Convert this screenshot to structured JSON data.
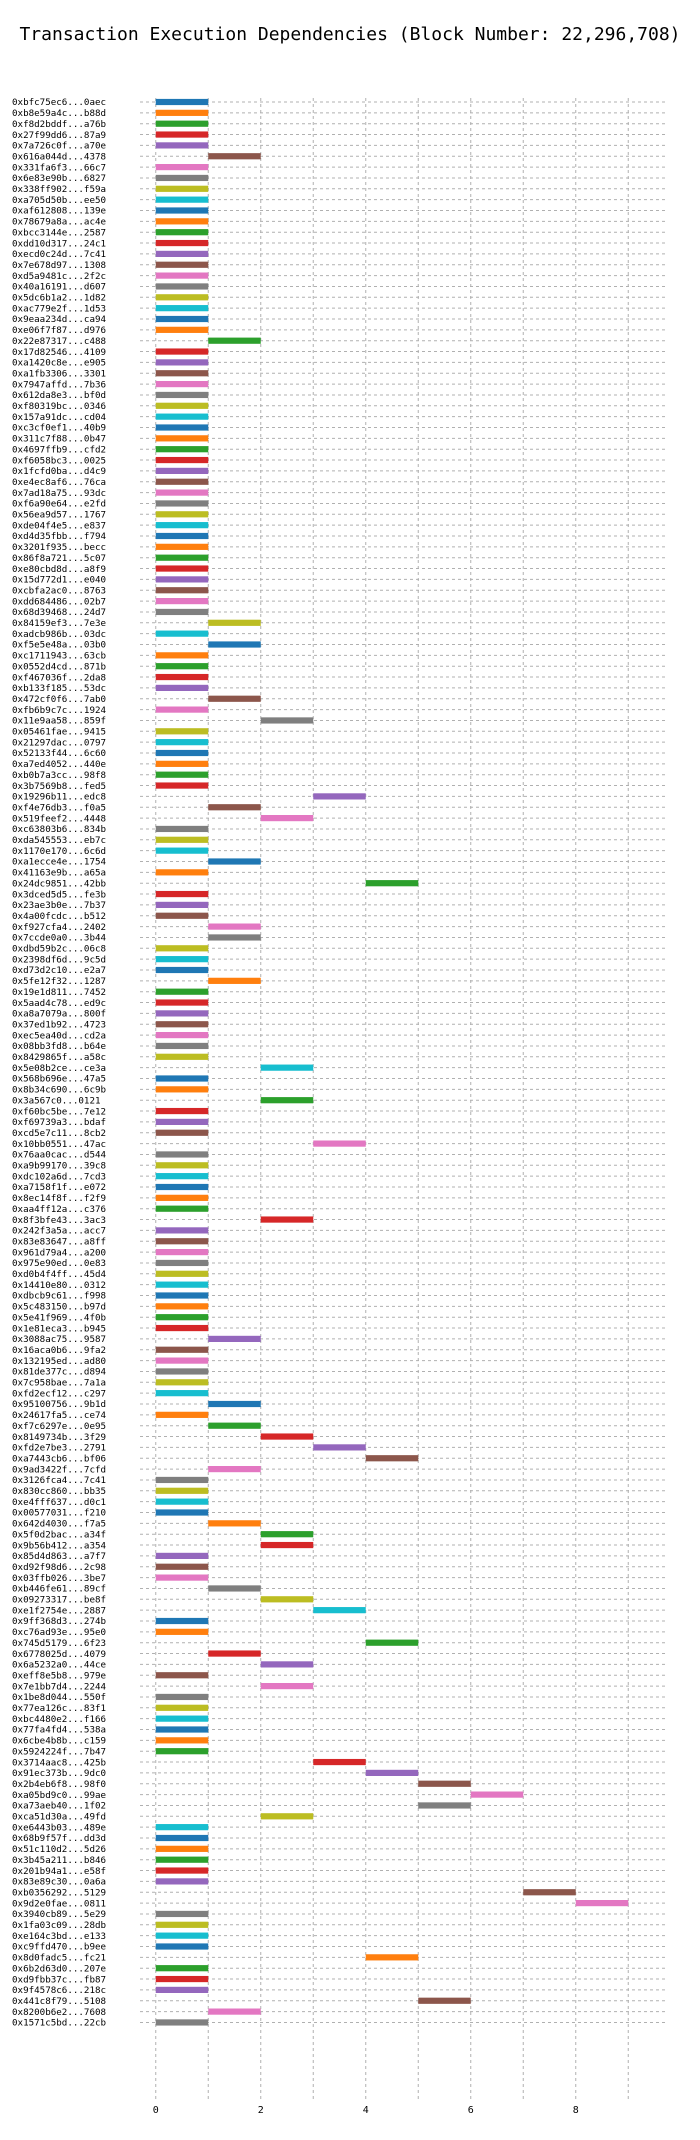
{
  "chart_data": {
    "type": "bar",
    "orientation": "horizontal",
    "title": "Transaction Execution Dependencies (Block Number: 22,296,708)",
    "xlabel": "",
    "ylabel": "",
    "xlim": [
      -0.3,
      9.7
    ],
    "xticks": [
      0,
      2,
      4,
      6,
      8
    ],
    "grid": true,
    "palette": [
      "#1f77b4",
      "#ff7f0e",
      "#2ca02c",
      "#d62728",
      "#9467bd",
      "#8c564b",
      "#e377c2",
      "#7f7f7f",
      "#bcbd22",
      "#17becf"
    ],
    "transactions": [
      {
        "label": "0xbfc75ec6...0aec",
        "start": 0,
        "end": 1
      },
      {
        "label": "0xb8e59a4c...b88d",
        "start": 0,
        "end": 1
      },
      {
        "label": "0xf8d2bddf...a76b",
        "start": 0,
        "end": 1
      },
      {
        "label": "0x27f99dd6...87a9",
        "start": 0,
        "end": 1
      },
      {
        "label": "0x7a726c0f...a70e",
        "start": 0,
        "end": 1
      },
      {
        "label": "0x616a044d...4378",
        "start": 1,
        "end": 2
      },
      {
        "label": "0x331fa6f3...66c7",
        "start": 0,
        "end": 1
      },
      {
        "label": "0x6e83e90b...6827",
        "start": 0,
        "end": 1
      },
      {
        "label": "0x338ff902...f59a",
        "start": 0,
        "end": 1
      },
      {
        "label": "0xa705d50b...ee50",
        "start": 0,
        "end": 1
      },
      {
        "label": "0xaf612808...139e",
        "start": 0,
        "end": 1
      },
      {
        "label": "0x78679a8a...ac4e",
        "start": 0,
        "end": 1
      },
      {
        "label": "0xbcc3144e...2587",
        "start": 0,
        "end": 1
      },
      {
        "label": "0xdd10d317...24c1",
        "start": 0,
        "end": 1
      },
      {
        "label": "0xecd0c24d...7c41",
        "start": 0,
        "end": 1
      },
      {
        "label": "0x7e678d97...1308",
        "start": 0,
        "end": 1
      },
      {
        "label": "0xd5a9481c...2f2c",
        "start": 0,
        "end": 1
      },
      {
        "label": "0x40a16191...d607",
        "start": 0,
        "end": 1
      },
      {
        "label": "0x5dc6b1a2...1d82",
        "start": 0,
        "end": 1
      },
      {
        "label": "0xac779e2f...1d53",
        "start": 0,
        "end": 1
      },
      {
        "label": "0x9eaa234d...ca94",
        "start": 0,
        "end": 1
      },
      {
        "label": "0xe06f7f87...d976",
        "start": 0,
        "end": 1
      },
      {
        "label": "0x22e87317...c488",
        "start": 1,
        "end": 2
      },
      {
        "label": "0x17d82546...4109",
        "start": 0,
        "end": 1
      },
      {
        "label": "0xa1420c8e...e905",
        "start": 0,
        "end": 1
      },
      {
        "label": "0xa1fb3306...3301",
        "start": 0,
        "end": 1
      },
      {
        "label": "0x7947affd...7b36",
        "start": 0,
        "end": 1
      },
      {
        "label": "0x612da8e3...bf0d",
        "start": 0,
        "end": 1
      },
      {
        "label": "0xf80319bc...0346",
        "start": 0,
        "end": 1
      },
      {
        "label": "0x157a91dc...cd04",
        "start": 0,
        "end": 1
      },
      {
        "label": "0xc3cf0ef1...40b9",
        "start": 0,
        "end": 1
      },
      {
        "label": "0x311c7f88...0b47",
        "start": 0,
        "end": 1
      },
      {
        "label": "0x4697ffb9...cfd2",
        "start": 0,
        "end": 1
      },
      {
        "label": "0xf6058bc3...0025",
        "start": 0,
        "end": 1
      },
      {
        "label": "0x1fcfd0ba...d4c9",
        "start": 0,
        "end": 1
      },
      {
        "label": "0xe4ec8af6...76ca",
        "start": 0,
        "end": 1
      },
      {
        "label": "0x7ad18a75...93dc",
        "start": 0,
        "end": 1
      },
      {
        "label": "0xf6a90e64...e2fd",
        "start": 0,
        "end": 1
      },
      {
        "label": "0x56ea9d57...1767",
        "start": 0,
        "end": 1
      },
      {
        "label": "0xde04f4e5...e837",
        "start": 0,
        "end": 1
      },
      {
        "label": "0xd4d35fbb...f794",
        "start": 0,
        "end": 1
      },
      {
        "label": "0x3201f935...becc",
        "start": 0,
        "end": 1
      },
      {
        "label": "0x86f8a721...5c07",
        "start": 0,
        "end": 1
      },
      {
        "label": "0xe80cbd8d...a8f9",
        "start": 0,
        "end": 1
      },
      {
        "label": "0x15d772d1...e040",
        "start": 0,
        "end": 1
      },
      {
        "label": "0xcbfa2ac0...8763",
        "start": 0,
        "end": 1
      },
      {
        "label": "0xdd684486...02b7",
        "start": 0,
        "end": 1
      },
      {
        "label": "0x68d39468...24d7",
        "start": 0,
        "end": 1
      },
      {
        "label": "0x84159ef3...7e3e",
        "start": 1,
        "end": 2
      },
      {
        "label": "0xadcb986b...03dc",
        "start": 0,
        "end": 1
      },
      {
        "label": "0xf5e5e48a...03b0",
        "start": 1,
        "end": 2
      },
      {
        "label": "0xc1711943...63cb",
        "start": 0,
        "end": 1
      },
      {
        "label": "0x0552d4cd...871b",
        "start": 0,
        "end": 1
      },
      {
        "label": "0xf467036f...2da8",
        "start": 0,
        "end": 1
      },
      {
        "label": "0xb133f185...53dc",
        "start": 0,
        "end": 1
      },
      {
        "label": "0x472cf0f6...7ab0",
        "start": 1,
        "end": 2
      },
      {
        "label": "0xfb6b9c7c...1924",
        "start": 0,
        "end": 1
      },
      {
        "label": "0x11e9aa58...859f",
        "start": 2,
        "end": 3
      },
      {
        "label": "0x05461fae...9415",
        "start": 0,
        "end": 1
      },
      {
        "label": "0x21297dac...0797",
        "start": 0,
        "end": 1
      },
      {
        "label": "0x52133f44...6c60",
        "start": 0,
        "end": 1
      },
      {
        "label": "0xa7ed4052...440e",
        "start": 0,
        "end": 1
      },
      {
        "label": "0xb0b7a3cc...98f8",
        "start": 0,
        "end": 1
      },
      {
        "label": "0x3b7569b8...fed5",
        "start": 0,
        "end": 1
      },
      {
        "label": "0x19296b11...edc8",
        "start": 3,
        "end": 4
      },
      {
        "label": "0xf4e76db3...f0a5",
        "start": 1,
        "end": 2
      },
      {
        "label": "0x519feef2...4448",
        "start": 2,
        "end": 3
      },
      {
        "label": "0xc63803b6...834b",
        "start": 0,
        "end": 1
      },
      {
        "label": "0xda545553...eb7c",
        "start": 0,
        "end": 1
      },
      {
        "label": "0x1170e170...6c6d",
        "start": 0,
        "end": 1
      },
      {
        "label": "0xa1ecce4e...1754",
        "start": 1,
        "end": 2
      },
      {
        "label": "0x41163e9b...a65a",
        "start": 0,
        "end": 1
      },
      {
        "label": "0x24dc9851...42bb",
        "start": 4,
        "end": 5
      },
      {
        "label": "0x3dced5d5...fe3b",
        "start": 0,
        "end": 1
      },
      {
        "label": "0x23ae3b0e...7b37",
        "start": 0,
        "end": 1
      },
      {
        "label": "0x4a00fcdc...b512",
        "start": 0,
        "end": 1
      },
      {
        "label": "0xf927cfa4...2402",
        "start": 1,
        "end": 2
      },
      {
        "label": "0x7ccde0a0...3b44",
        "start": 1,
        "end": 2
      },
      {
        "label": "0xdbd59b2c...06c8",
        "start": 0,
        "end": 1
      },
      {
        "label": "0x2398df6d...9c5d",
        "start": 0,
        "end": 1
      },
      {
        "label": "0xd73d2c10...e2a7",
        "start": 0,
        "end": 1
      },
      {
        "label": "0x5fe12f32...1287",
        "start": 1,
        "end": 2
      },
      {
        "label": "0x19e1d811...7452",
        "start": 0,
        "end": 1
      },
      {
        "label": "0x5aad4c78...ed9c",
        "start": 0,
        "end": 1
      },
      {
        "label": "0xa8a7079a...800f",
        "start": 0,
        "end": 1
      },
      {
        "label": "0x37ed1b92...4723",
        "start": 0,
        "end": 1
      },
      {
        "label": "0xec5ea40d...cd2a",
        "start": 0,
        "end": 1
      },
      {
        "label": "0x08bb3fd8...b64e",
        "start": 0,
        "end": 1
      },
      {
        "label": "0x8429865f...a58c",
        "start": 0,
        "end": 1
      },
      {
        "label": "0x5e08b2ce...ce3a",
        "start": 2,
        "end": 3
      },
      {
        "label": "0x568b696e...47a5",
        "start": 0,
        "end": 1
      },
      {
        "label": "0x8b34c690...6c9b",
        "start": 0,
        "end": 1
      },
      {
        "label": "0x3a567c0...0121",
        "start": 2,
        "end": 3
      },
      {
        "label": "0xf60bc5be...7e12",
        "start": 0,
        "end": 1
      },
      {
        "label": "0xf69739a3...bdaf",
        "start": 0,
        "end": 1
      },
      {
        "label": "0xcd5e7c11...8cb2",
        "start": 0,
        "end": 1
      },
      {
        "label": "0x10bb0551...47ac",
        "start": 3,
        "end": 4
      },
      {
        "label": "0x76aa0cac...d544",
        "start": 0,
        "end": 1
      },
      {
        "label": "0xa9b99170...39c8",
        "start": 0,
        "end": 1
      },
      {
        "label": "0xdc102a6d...7cd3",
        "start": 0,
        "end": 1
      },
      {
        "label": "0xa7158f1f...e072",
        "start": 0,
        "end": 1
      },
      {
        "label": "0x8ec14f8f...f2f9",
        "start": 0,
        "end": 1
      },
      {
        "label": "0xaa4ff12a...c376",
        "start": 0,
        "end": 1
      },
      {
        "label": "0x8f3bfe43...3ac3",
        "start": 2,
        "end": 3
      },
      {
        "label": "0x242f3a5a...acc7",
        "start": 0,
        "end": 1
      },
      {
        "label": "0x83e83647...a8ff",
        "start": 0,
        "end": 1
      },
      {
        "label": "0x961d79a4...a200",
        "start": 0,
        "end": 1
      },
      {
        "label": "0x975e90ed...0e83",
        "start": 0,
        "end": 1
      },
      {
        "label": "0xd0b4f4ff...45d4",
        "start": 0,
        "end": 1
      },
      {
        "label": "0x14410e80...0312",
        "start": 0,
        "end": 1
      },
      {
        "label": "0xdbcb9c61...f998",
        "start": 0,
        "end": 1
      },
      {
        "label": "0x5c483150...b97d",
        "start": 0,
        "end": 1
      },
      {
        "label": "0x5e41f969...4f0b",
        "start": 0,
        "end": 1
      },
      {
        "label": "0x1e81eca3...b945",
        "start": 0,
        "end": 1
      },
      {
        "label": "0x3088ac75...9587",
        "start": 1,
        "end": 2
      },
      {
        "label": "0x16aca0b6...9fa2",
        "start": 0,
        "end": 1
      },
      {
        "label": "0x132195ed...ad80",
        "start": 0,
        "end": 1
      },
      {
        "label": "0x81de377c...d894",
        "start": 0,
        "end": 1
      },
      {
        "label": "0x7c958bae...7a1a",
        "start": 0,
        "end": 1
      },
      {
        "label": "0xfd2ecf12...c297",
        "start": 0,
        "end": 1
      },
      {
        "label": "0x95100756...9b1d",
        "start": 1,
        "end": 2
      },
      {
        "label": "0x24617fa5...ce74",
        "start": 0,
        "end": 1
      },
      {
        "label": "0xf7c6297e...0e95",
        "start": 1,
        "end": 2
      },
      {
        "label": "0x8149734b...3f29",
        "start": 2,
        "end": 3
      },
      {
        "label": "0xfd2e7be3...2791",
        "start": 3,
        "end": 4
      },
      {
        "label": "0xa7443cb6...bf06",
        "start": 4,
        "end": 5
      },
      {
        "label": "0x9ad3422f...7cfd",
        "start": 1,
        "end": 2
      },
      {
        "label": "0x3126fca4...7c41",
        "start": 0,
        "end": 1
      },
      {
        "label": "0x830cc860...bb35",
        "start": 0,
        "end": 1
      },
      {
        "label": "0xe4fff637...d0c1",
        "start": 0,
        "end": 1
      },
      {
        "label": "0x00577031...f210",
        "start": 0,
        "end": 1
      },
      {
        "label": "0x642d4030...f7a5",
        "start": 1,
        "end": 2
      },
      {
        "label": "0x5f0d2bac...a34f",
        "start": 2,
        "end": 3
      },
      {
        "label": "0x9b56b412...a354",
        "start": 2,
        "end": 3
      },
      {
        "label": "0x85d4d863...a7f7",
        "start": 0,
        "end": 1
      },
      {
        "label": "0xd92f98d6...2c98",
        "start": 0,
        "end": 1
      },
      {
        "label": "0x03ffb026...3be7",
        "start": 0,
        "end": 1
      },
      {
        "label": "0xb446fe61...89cf",
        "start": 1,
        "end": 2
      },
      {
        "label": "0x09273317...be8f",
        "start": 2,
        "end": 3
      },
      {
        "label": "0xe1f2754e...2887",
        "start": 3,
        "end": 4
      },
      {
        "label": "0x9ff368d3...274b",
        "start": 0,
        "end": 1
      },
      {
        "label": "0xc76ad93e...95e0",
        "start": 0,
        "end": 1
      },
      {
        "label": "0x745d5179...6f23",
        "start": 4,
        "end": 5
      },
      {
        "label": "0x6778025d...4079",
        "start": 1,
        "end": 2
      },
      {
        "label": "0x6a5232a0...44ce",
        "start": 2,
        "end": 3
      },
      {
        "label": "0xeff8e5b8...979e",
        "start": 0,
        "end": 1
      },
      {
        "label": "0x7e1bb7d4...2244",
        "start": 2,
        "end": 3
      },
      {
        "label": "0x1be8d044...550f",
        "start": 0,
        "end": 1
      },
      {
        "label": "0x77ea126c...83f1",
        "start": 0,
        "end": 1
      },
      {
        "label": "0xbc4480e2...f166",
        "start": 0,
        "end": 1
      },
      {
        "label": "0x77fa4fd4...538a",
        "start": 0,
        "end": 1
      },
      {
        "label": "0x6cbe4b8b...c159",
        "start": 0,
        "end": 1
      },
      {
        "label": "0x5924224f...7b47",
        "start": 0,
        "end": 1
      },
      {
        "label": "0x3714aac8...425b",
        "start": 3,
        "end": 4
      },
      {
        "label": "0x91ec373b...9dc0",
        "start": 4,
        "end": 5
      },
      {
        "label": "0x2b4eb6f8...98f0",
        "start": 5,
        "end": 6
      },
      {
        "label": "0xa05bd9c0...99ae",
        "start": 6,
        "end": 7
      },
      {
        "label": "0xa73aeb40...1f02",
        "start": 5,
        "end": 6
      },
      {
        "label": "0xca51d30a...49fd",
        "start": 2,
        "end": 3
      },
      {
        "label": "0xe6443b03...489e",
        "start": 0,
        "end": 1
      },
      {
        "label": "0x68b9f57f...dd3d",
        "start": 0,
        "end": 1
      },
      {
        "label": "0x51c110d2...5d26",
        "start": 0,
        "end": 1
      },
      {
        "label": "0x3b45a211...b846",
        "start": 0,
        "end": 1
      },
      {
        "label": "0x201b94a1...e58f",
        "start": 0,
        "end": 1
      },
      {
        "label": "0x83e89c30...0a6a",
        "start": 0,
        "end": 1
      },
      {
        "label": "0xb0356292...5129",
        "start": 7,
        "end": 8
      },
      {
        "label": "0x9d2e0fae...0811",
        "start": 8,
        "end": 9
      },
      {
        "label": "0x3940cb89...5e29",
        "start": 0,
        "end": 1
      },
      {
        "label": "0x1fa03c09...28db",
        "start": 0,
        "end": 1
      },
      {
        "label": "0xe164c3bd...e133",
        "start": 0,
        "end": 1
      },
      {
        "label": "0xc9ffd470...b9ee",
        "start": 0,
        "end": 1
      },
      {
        "label": "0x8d0fadc5...fc21",
        "start": 4,
        "end": 5
      },
      {
        "label": "0x6b2d63d0...207e",
        "start": 0,
        "end": 1
      },
      {
        "label": "0xd9fbb37c...fb87",
        "start": 0,
        "end": 1
      },
      {
        "label": "0x9f4578c6...218c",
        "start": 0,
        "end": 1
      },
      {
        "label": "0x441c8f79...5108",
        "start": 5,
        "end": 6
      },
      {
        "label": "0x8200b6e2...7608",
        "start": 1,
        "end": 2
      },
      {
        "label": "0x1571c5bd...22cb",
        "start": 0,
        "end": 1
      }
    ]
  }
}
